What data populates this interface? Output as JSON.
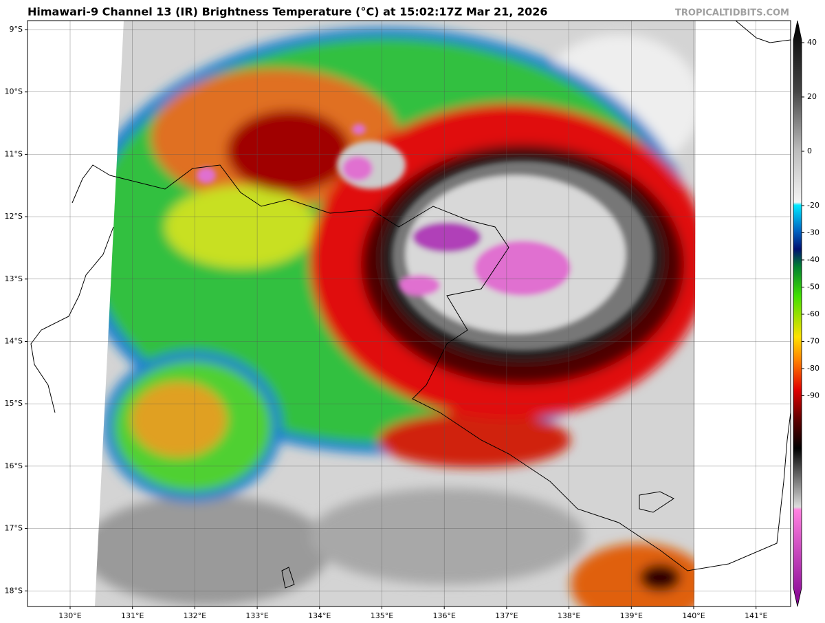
{
  "title": "Himawari-9 Channel 13 (IR) Brightness Temperature (°C) at 15:02:17Z Mar 21, 2026",
  "watermark": "TROPICALTIDBITS.COM",
  "lat_labels": [
    "9°S",
    "10°S",
    "11°S",
    "12°S",
    "13°S",
    "14°S",
    "15°S",
    "16°S",
    "17°S",
    "18°S"
  ],
  "lon_labels": [
    "130°E",
    "131°E",
    "132°E",
    "133°E",
    "134°E",
    "135°E",
    "136°E",
    "137°E",
    "138°E",
    "139°E",
    "140°E",
    "141°E"
  ],
  "colorbar_ticks": [
    40,
    20,
    0,
    -20,
    -30,
    -40,
    -50,
    -60,
    -70,
    -80,
    -90
  ]
}
